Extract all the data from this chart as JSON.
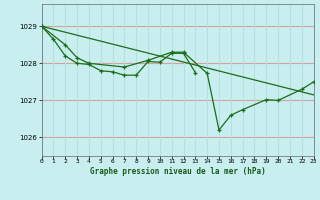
{
  "title": "Graphe pression niveau de la mer (hPa)",
  "bg_color": "#c8eef0",
  "line_color": "#1a6e1a",
  "grid_color_h": "#d4a0a0",
  "grid_color_v": "#b8dede",
  "xlim": [
    0,
    23
  ],
  "ylim": [
    1025.5,
    1029.6
  ],
  "yticks": [
    1026,
    1027,
    1028,
    1029
  ],
  "xticks": [
    0,
    1,
    2,
    3,
    4,
    5,
    6,
    7,
    8,
    9,
    10,
    11,
    12,
    13,
    14,
    15,
    16,
    17,
    18,
    19,
    20,
    21,
    22,
    23
  ],
  "series1_x": [
    0,
    1,
    2,
    3,
    4,
    5,
    6,
    7,
    8,
    9,
    10,
    11,
    12,
    13
  ],
  "series1_y": [
    1029.0,
    1028.65,
    1028.2,
    1028.0,
    1027.97,
    1027.8,
    1027.77,
    1027.68,
    1027.68,
    1028.05,
    1028.03,
    1028.27,
    1028.27,
    1027.75
  ],
  "series2_x": [
    0,
    2,
    3,
    4,
    7,
    9,
    11,
    12,
    14,
    15,
    16,
    17,
    19,
    20,
    22,
    23
  ],
  "series2_y": [
    1029.0,
    1028.5,
    1028.15,
    1028.0,
    1027.9,
    1028.08,
    1028.3,
    1028.3,
    1027.73,
    1026.2,
    1026.6,
    1026.75,
    1027.02,
    1027.0,
    1027.3,
    1027.5
  ],
  "series3_x": [
    0,
    23
  ],
  "series3_y": [
    1029.0,
    1027.15
  ]
}
